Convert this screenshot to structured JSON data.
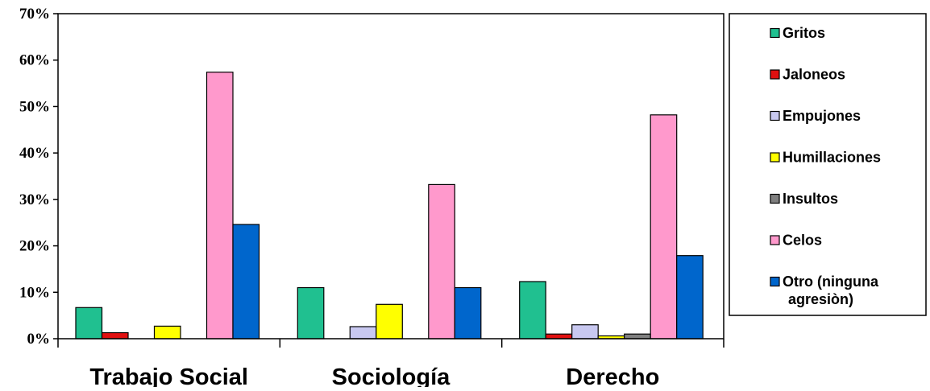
{
  "chart_data": {
    "type": "bar",
    "categories": [
      "Trabajo Social",
      "Sociología",
      "Derecho"
    ],
    "series": [
      {
        "name": "Gritos",
        "color": "#20c090",
        "values": [
          6.7,
          11.0,
          12.3
        ]
      },
      {
        "name": "Jaloneos",
        "color": "#e01010",
        "values": [
          1.3,
          0.0,
          1.0
        ]
      },
      {
        "name": "Empujones",
        "color": "#c8c8f0",
        "values": [
          0.0,
          2.6,
          3.0
        ]
      },
      {
        "name": "Humillaciones",
        "color": "#ffff00",
        "values": [
          2.7,
          7.4,
          0.6
        ]
      },
      {
        "name": "Insultos",
        "color": "#808080",
        "values": [
          0.0,
          0.0,
          1.0
        ]
      },
      {
        "name": "Celos",
        "color": "#ff99cc",
        "values": [
          57.4,
          33.2,
          48.2
        ]
      },
      {
        "name": "Otro (ninguna agresiòn)",
        "color": "#0066cc",
        "values": [
          24.6,
          11.0,
          17.9
        ]
      }
    ],
    "ylim": [
      0,
      70
    ],
    "yticks": [
      "0%",
      "10%",
      "20%",
      "30%",
      "40%",
      "50%",
      "60%",
      "70%"
    ],
    "legend_position": "right",
    "grid": false,
    "title": "",
    "xlabel": "",
    "ylabel": ""
  }
}
